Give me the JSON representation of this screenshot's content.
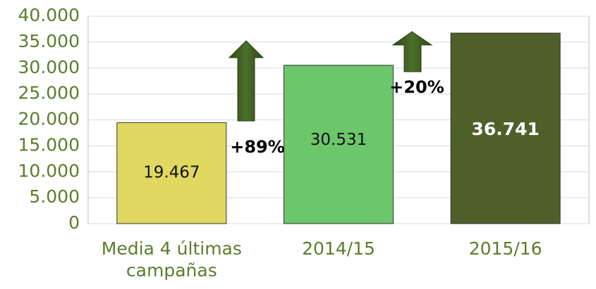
{
  "chart_data": {
    "type": "bar",
    "categories": [
      "Media 4 últimas campañas",
      "2014/15",
      "2015/16"
    ],
    "values": [
      19467,
      30531,
      36741
    ],
    "value_labels": [
      "19.467",
      "30.531",
      "36.741"
    ],
    "colors": [
      "#e1d862",
      "#6cc66b",
      "#4f5f2a"
    ],
    "ylim": [
      0,
      40000
    ],
    "yticks": [
      0,
      {
        "value": 5000,
        "label": "5.000"
      },
      {
        "value": 10000,
        "label": "10.000"
      },
      {
        "value": 15000,
        "label": "15.000"
      },
      {
        "value": 20000,
        "label": "20.000"
      },
      {
        "value": 25000,
        "label": "25.000"
      },
      {
        "value": 30000,
        "label": "30.000"
      },
      {
        "value": 35000,
        "label": "35.000"
      },
      {
        "value": 40000,
        "label": "40.000"
      }
    ],
    "grid": true,
    "annotations": [
      {
        "text": "+89%"
      },
      {
        "text": "+20%"
      }
    ]
  }
}
